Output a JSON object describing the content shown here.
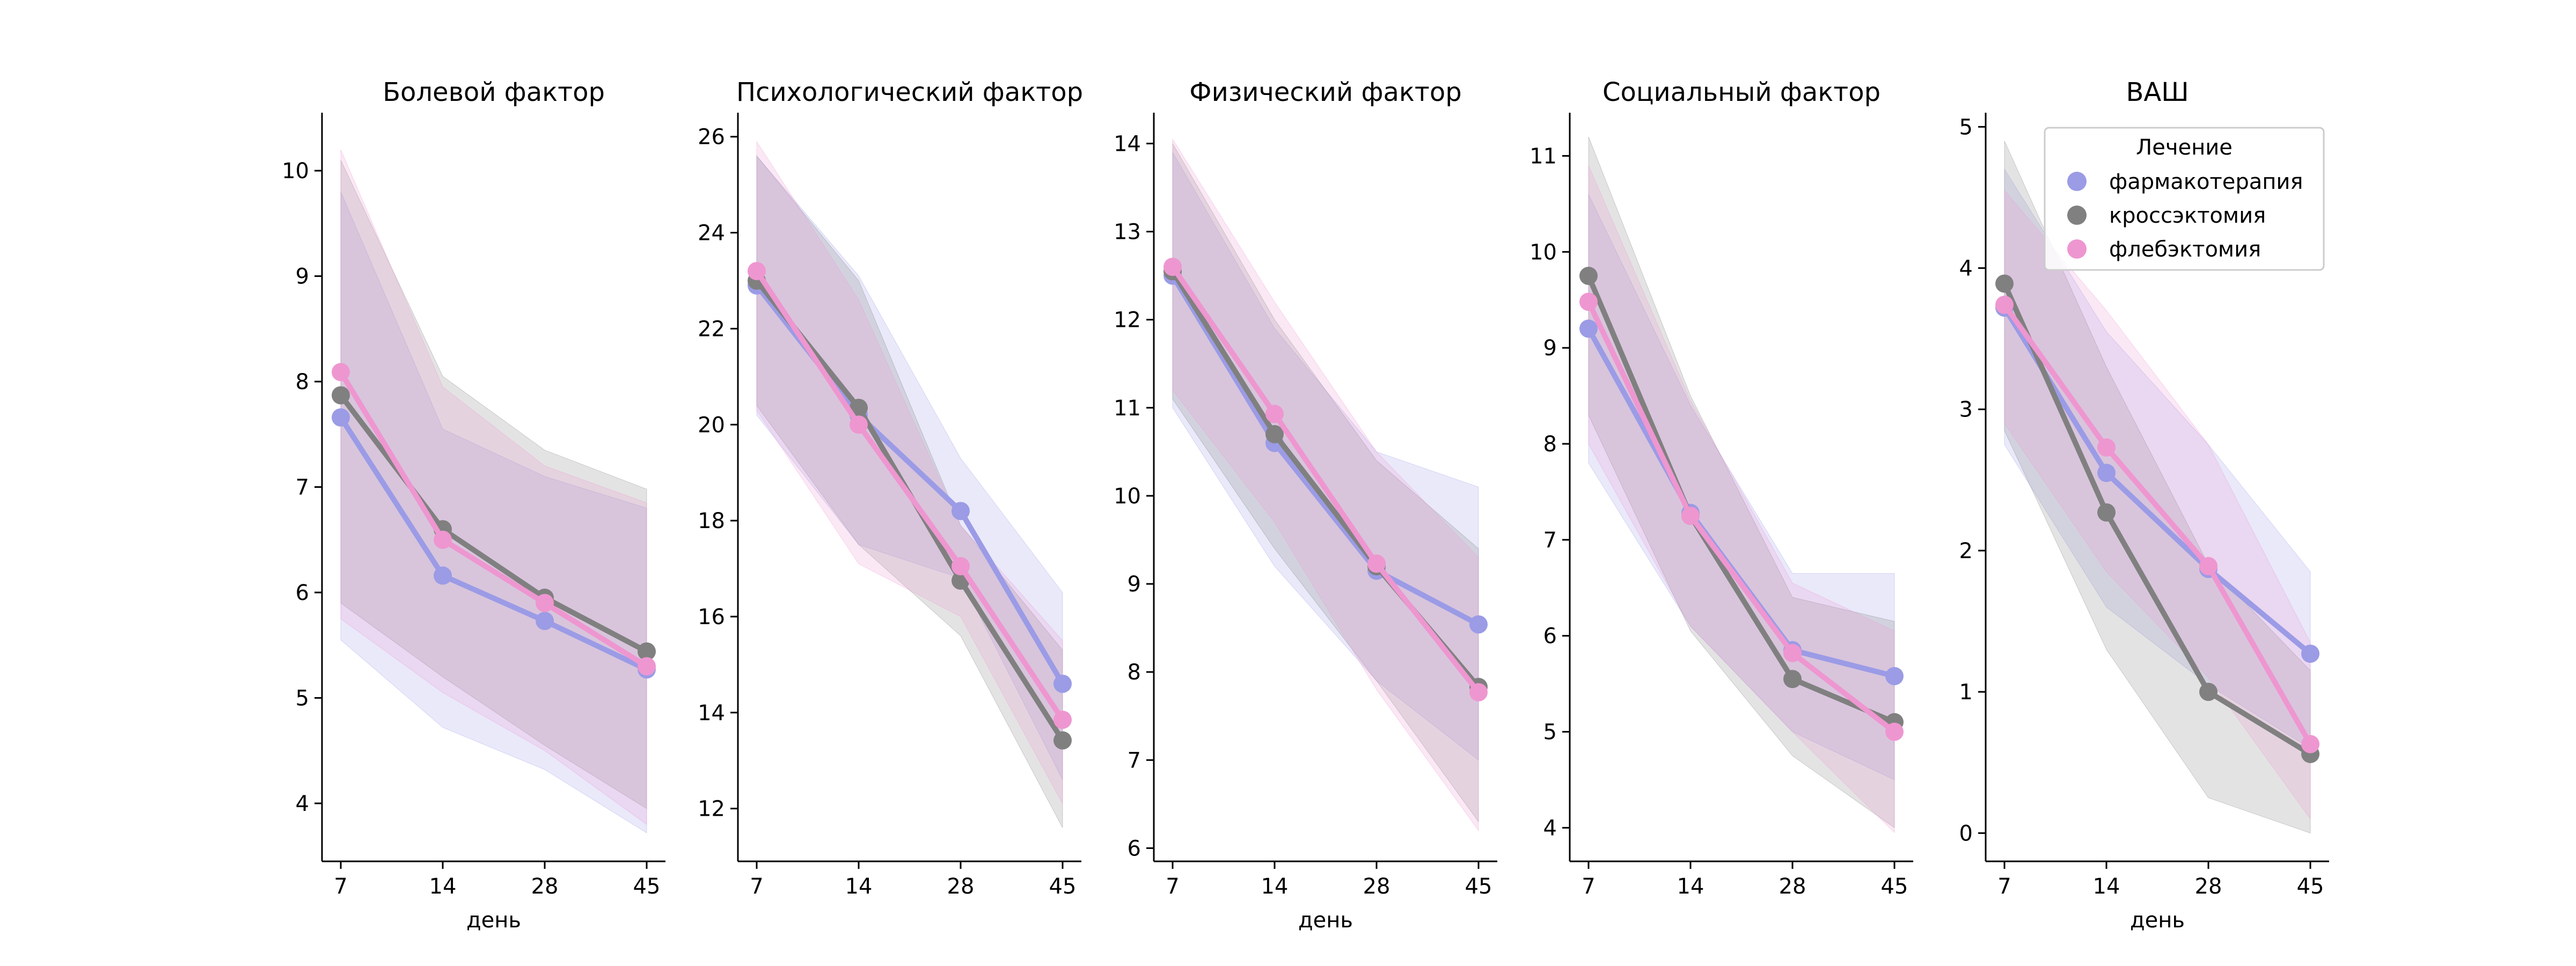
{
  "chart_data": {
    "type": "line",
    "legend": {
      "title": "Лечение",
      "placement": "upper-right of last panel",
      "entries": [
        {
          "label": "фармакотерапия",
          "color": "#9b9be6"
        },
        {
          "label": "кроссэктомия",
          "color": "#808080"
        },
        {
          "label": "флебэктомия",
          "color": "#ee96d0"
        }
      ]
    },
    "x_categories": [
      "7",
      "14",
      "28",
      "45"
    ],
    "panels": [
      {
        "title": "Болевой фактор",
        "xlabel": "день",
        "ylim": [
          3.45,
          10.55
        ],
        "yticks": [
          4,
          5,
          6,
          7,
          8,
          9,
          10
        ],
        "series": [
          {
            "legend_index": 0,
            "values": [
              7.66,
              6.16,
              5.73,
              5.27
            ],
            "ci_low": [
              5.55,
              4.72,
              4.32,
              3.72
            ],
            "ci_high": [
              9.8,
              7.55,
              7.1,
              6.8
            ]
          },
          {
            "legend_index": 1,
            "values": [
              7.87,
              6.6,
              5.95,
              5.44
            ],
            "ci_low": [
              5.9,
              5.2,
              4.55,
              3.95
            ],
            "ci_high": [
              10.1,
              8.05,
              7.35,
              6.98
            ]
          },
          {
            "legend_index": 2,
            "values": [
              8.09,
              6.5,
              5.9,
              5.3
            ],
            "ci_low": [
              5.75,
              5.05,
              4.5,
              3.8
            ],
            "ci_high": [
              10.2,
              7.95,
              7.2,
              6.85
            ]
          }
        ]
      },
      {
        "title": "Психологический фактор",
        "xlabel": "",
        "ylim": [
          10.9,
          26.5
        ],
        "yticks": [
          12,
          14,
          16,
          18,
          20,
          22,
          24,
          26
        ],
        "series": [
          {
            "legend_index": 0,
            "values": [
              22.9,
              20.2,
              18.2,
              14.6
            ],
            "ci_low": [
              20.2,
              17.5,
              16.8,
              12.6
            ],
            "ci_high": [
              25.6,
              23.1,
              19.3,
              16.5
            ]
          },
          {
            "legend_index": 1,
            "values": [
              23.0,
              20.35,
              16.75,
              13.42
            ],
            "ci_low": [
              20.4,
              17.5,
              15.6,
              11.6
            ],
            "ci_high": [
              25.6,
              23.0,
              17.9,
              15.3
            ]
          },
          {
            "legend_index": 2,
            "values": [
              23.2,
              20.0,
              17.05,
              13.85
            ],
            "ci_low": [
              20.3,
              17.1,
              16.0,
              12.1
            ],
            "ci_high": [
              25.9,
              22.6,
              17.9,
              15.5
            ]
          }
        ]
      },
      {
        "title": "Физический фактор",
        "xlabel": "день",
        "ylim": [
          5.85,
          14.35
        ],
        "yticks": [
          6,
          7,
          8,
          9,
          10,
          11,
          12,
          13,
          14
        ],
        "series": [
          {
            "legend_index": 0,
            "values": [
              12.5,
              10.6,
              9.15,
              8.54
            ],
            "ci_low": [
              11.0,
              9.2,
              7.9,
              7.0
            ],
            "ci_high": [
              13.9,
              11.9,
              10.5,
              10.1
            ]
          },
          {
            "legend_index": 1,
            "values": [
              12.55,
              10.7,
              9.2,
              7.83
            ],
            "ci_low": [
              11.1,
              9.4,
              7.9,
              6.3
            ],
            "ci_high": [
              14.0,
              12.0,
              10.4,
              9.4
            ]
          },
          {
            "legend_index": 2,
            "values": [
              12.6,
              10.93,
              9.23,
              7.77
            ],
            "ci_low": [
              11.2,
              9.7,
              7.8,
              6.2
            ],
            "ci_high": [
              14.05,
              12.2,
              10.5,
              9.3
            ]
          }
        ]
      },
      {
        "title": "Социальный фактор",
        "xlabel": "",
        "ylim": [
          3.65,
          11.45
        ],
        "yticks": [
          4,
          5,
          6,
          7,
          8,
          9,
          10,
          11
        ],
        "series": [
          {
            "legend_index": 0,
            "values": [
              9.2,
              7.28,
              5.85,
              5.58
            ],
            "ci_low": [
              7.8,
              6.1,
              5.0,
              4.5
            ],
            "ci_high": [
              10.6,
              8.4,
              6.65,
              6.65
            ]
          },
          {
            "legend_index": 1,
            "values": [
              9.75,
              7.25,
              5.55,
              5.1
            ],
            "ci_low": [
              8.3,
              6.05,
              4.75,
              4.0
            ],
            "ci_high": [
              11.2,
              8.5,
              6.4,
              6.15
            ]
          },
          {
            "legend_index": 2,
            "values": [
              9.48,
              7.25,
              5.82,
              5.0
            ],
            "ci_low": [
              8.0,
              6.1,
              5.0,
              3.95
            ],
            "ci_high": [
              10.9,
              8.45,
              6.55,
              6.05
            ]
          }
        ]
      },
      {
        "title": "ВАШ",
        "xlabel": "день",
        "ylim": [
          -0.2,
          5.1
        ],
        "yticks": [
          0,
          1,
          2,
          3,
          4,
          5
        ],
        "series": [
          {
            "legend_index": 0,
            "values": [
              3.72,
              2.55,
              1.87,
              1.27
            ],
            "ci_low": [
              2.75,
              1.6,
              1.05,
              0.6
            ],
            "ci_high": [
              4.7,
              3.55,
              2.75,
              1.85
            ]
          },
          {
            "legend_index": 1,
            "values": [
              3.89,
              2.27,
              1.0,
              0.56
            ],
            "ci_low": [
              2.85,
              1.3,
              0.25,
              0.0
            ],
            "ci_high": [
              4.9,
              3.3,
              1.9,
              1.15
            ]
          },
          {
            "legend_index": 2,
            "values": [
              3.74,
              2.73,
              1.89,
              0.63
            ],
            "ci_low": [
              2.9,
              1.85,
              1.1,
              0.1
            ],
            "ci_high": [
              4.55,
              3.7,
              2.75,
              1.35
            ]
          }
        ]
      }
    ]
  }
}
